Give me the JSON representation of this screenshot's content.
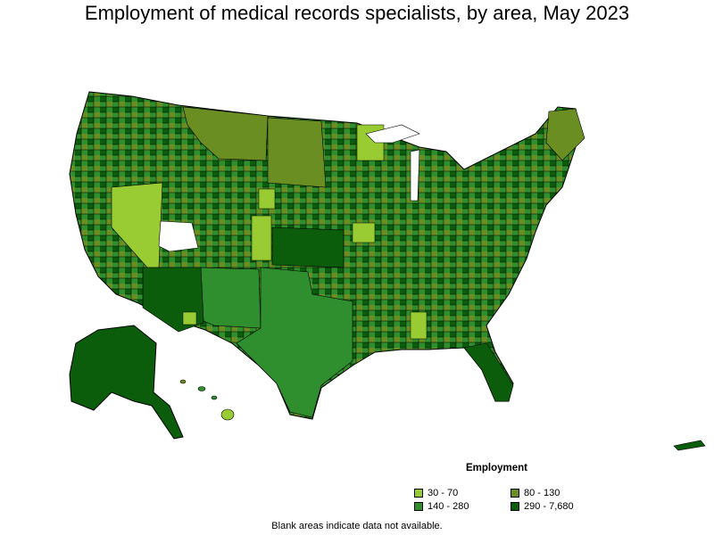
{
  "title": "Employment of medical records specialists, by area, May 2023",
  "legend": {
    "title": "Employment",
    "items": [
      {
        "label": "30 - 70",
        "color": "#99cc33"
      },
      {
        "label": "80 - 130",
        "color": "#6b8e23"
      },
      {
        "label": "140 - 280",
        "color": "#2f8f2f"
      },
      {
        "label": "290 - 7,680",
        "color": "#0b5d0b"
      }
    ]
  },
  "footnote": "Blank areas indicate data not available.",
  "colors": {
    "border": "#000000",
    "no_data": "#ffffff"
  }
}
